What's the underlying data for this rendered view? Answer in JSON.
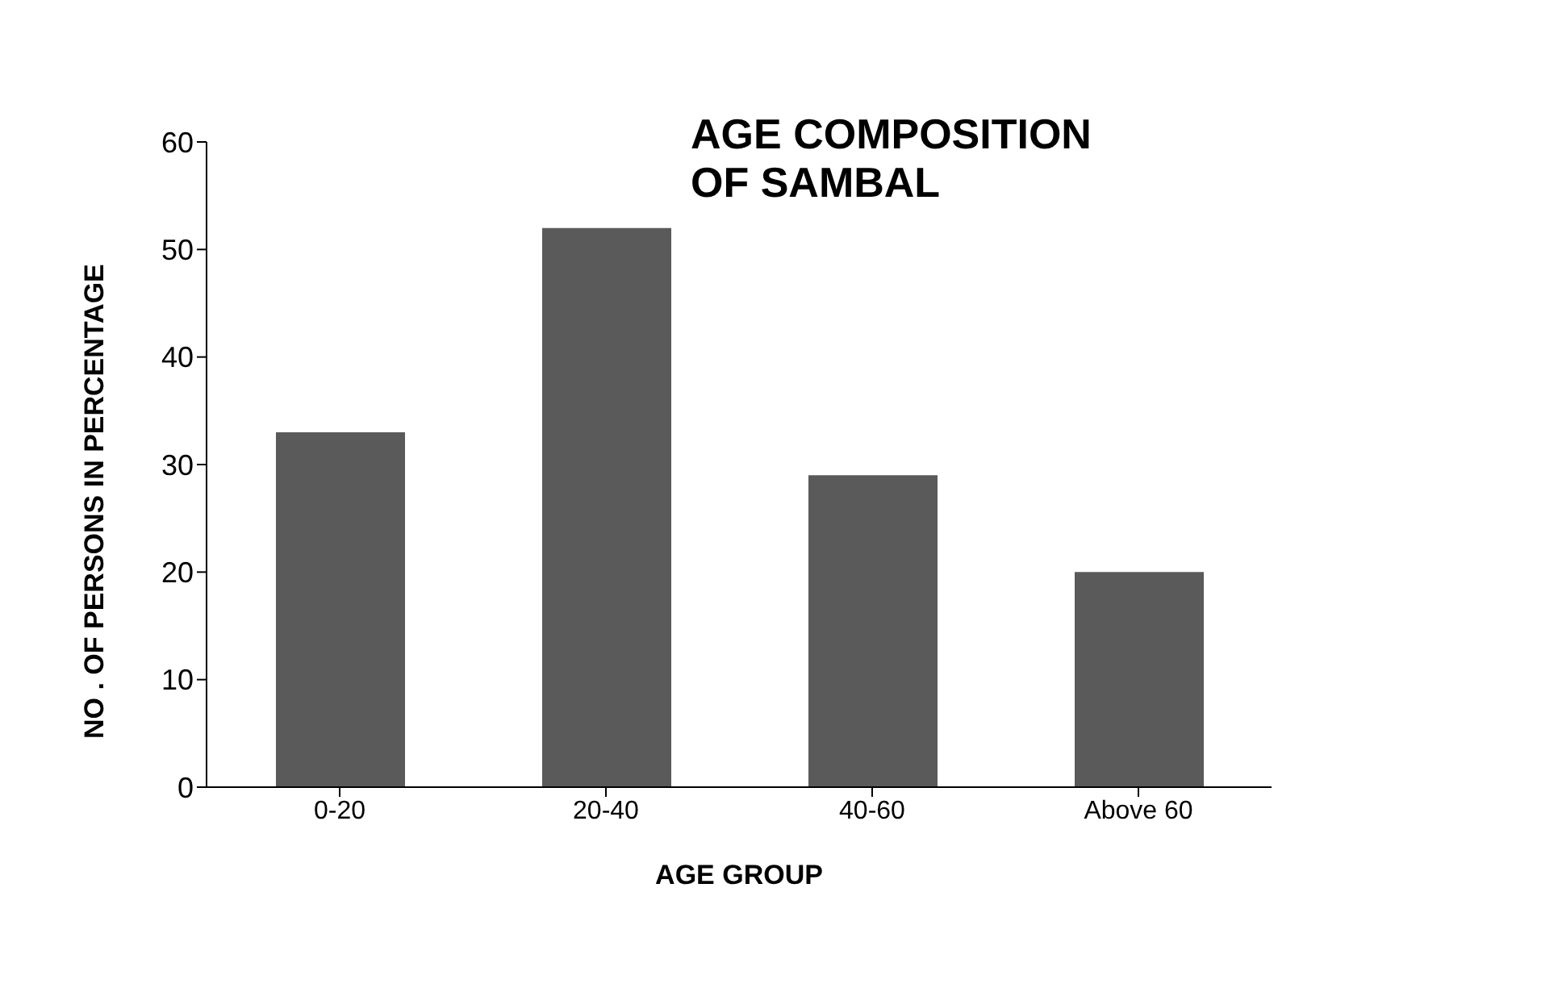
{
  "chart_data": {
    "type": "bar",
    "title": "AGE COMPOSITION OF SAMBAL",
    "xlabel": "AGE GROUP",
    "ylabel": "NO . OF PERSONS IN PERCENTAGE",
    "categories": [
      "0-20",
      "20-40",
      "40-60",
      "Above 60"
    ],
    "values": [
      33,
      52,
      29,
      20
    ],
    "color": "#5a5a5a",
    "ylim": [
      0,
      60
    ],
    "yticks": [
      0,
      10,
      20,
      30,
      40,
      50,
      60
    ],
    "grid": false,
    "legend": false
  }
}
